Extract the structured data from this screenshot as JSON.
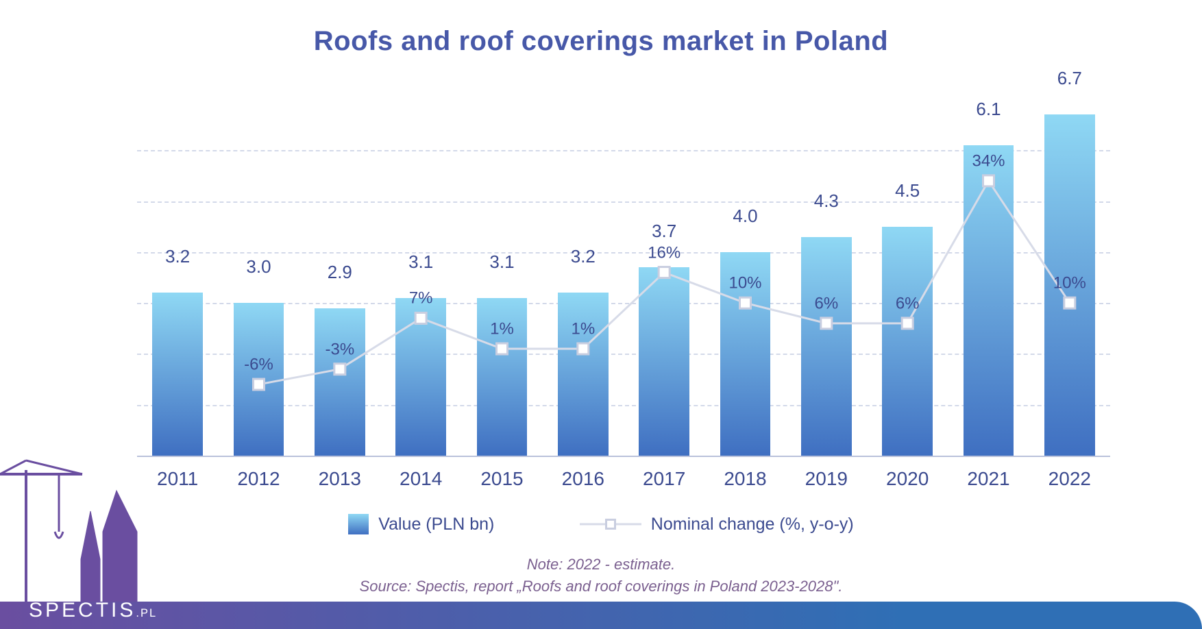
{
  "title": {
    "text": "Roofs and roof coverings market in Poland",
    "fontsize": 40,
    "color": "#4758a8"
  },
  "chart": {
    "type": "bar+line",
    "categories": [
      "2011",
      "2012",
      "2013",
      "2014",
      "2015",
      "2016",
      "2017",
      "2018",
      "2019",
      "2020",
      "2021",
      "2022"
    ],
    "bar_values": [
      3.2,
      3.0,
      2.9,
      3.1,
      3.1,
      3.2,
      3.7,
      4.0,
      4.3,
      4.5,
      6.1,
      6.7
    ],
    "bar_labels": [
      "3.2",
      "3.0",
      "2.9",
      "3.1",
      "3.1",
      "3.2",
      "3.7",
      "4.0",
      "4.3",
      "4.5",
      "6.1",
      "6.7"
    ],
    "line_values": [
      null,
      -6,
      -3,
      7,
      1,
      1,
      16,
      10,
      6,
      6,
      34,
      10
    ],
    "line_labels": [
      "",
      "-6%",
      "-3%",
      "7%",
      "1%",
      "1%",
      "16%",
      "10%",
      "6%",
      "6%",
      "34%",
      "10%"
    ],
    "ylim_bar": [
      0,
      7
    ],
    "ylim_line": [
      -20,
      50
    ],
    "grid_count": 6,
    "bar_gradient_top": "#8fd8f4",
    "bar_gradient_bottom": "#3f6fc1",
    "bar_width_ratio": 0.62,
    "grid_color": "#c9d0e4",
    "baseline_color": "#b9c1da",
    "label_color": "#3b4a8f",
    "label_fontsize": 26,
    "xlabel_fontsize": 28,
    "line_color": "#d7dbe8",
    "marker_fill": "#ffffff",
    "marker_border": "#c9cee0",
    "marker_size": 16,
    "line_width": 3,
    "line_label_color": "#3b4a8f",
    "line_label_fontsize": 24
  },
  "legend": {
    "bar_label": "Value (PLN bn)",
    "line_label": "Nominal change (%, y-o-y)",
    "text_color": "#3b4a8f",
    "fontsize": 25,
    "bar_swatch_top": "#8fd8f4",
    "bar_swatch_bottom": "#3f6fc1"
  },
  "notes": {
    "line1": "Note: 2022 - estimate.",
    "line2": "Source: Spectis, report „Roofs and roof coverings in Poland 2023-2028\".",
    "color": "#7a5f8f",
    "fontsize": 22
  },
  "footer": {
    "brand_main": "SPECTIS",
    "brand_domain": ".PL",
    "brand_color": "#ffffff",
    "brand_fontsize": 30,
    "band_gradient_left": "#6a4ea0",
    "band_gradient_right": "#2f6fb5",
    "silhouette_color": "#6a4ea0"
  }
}
